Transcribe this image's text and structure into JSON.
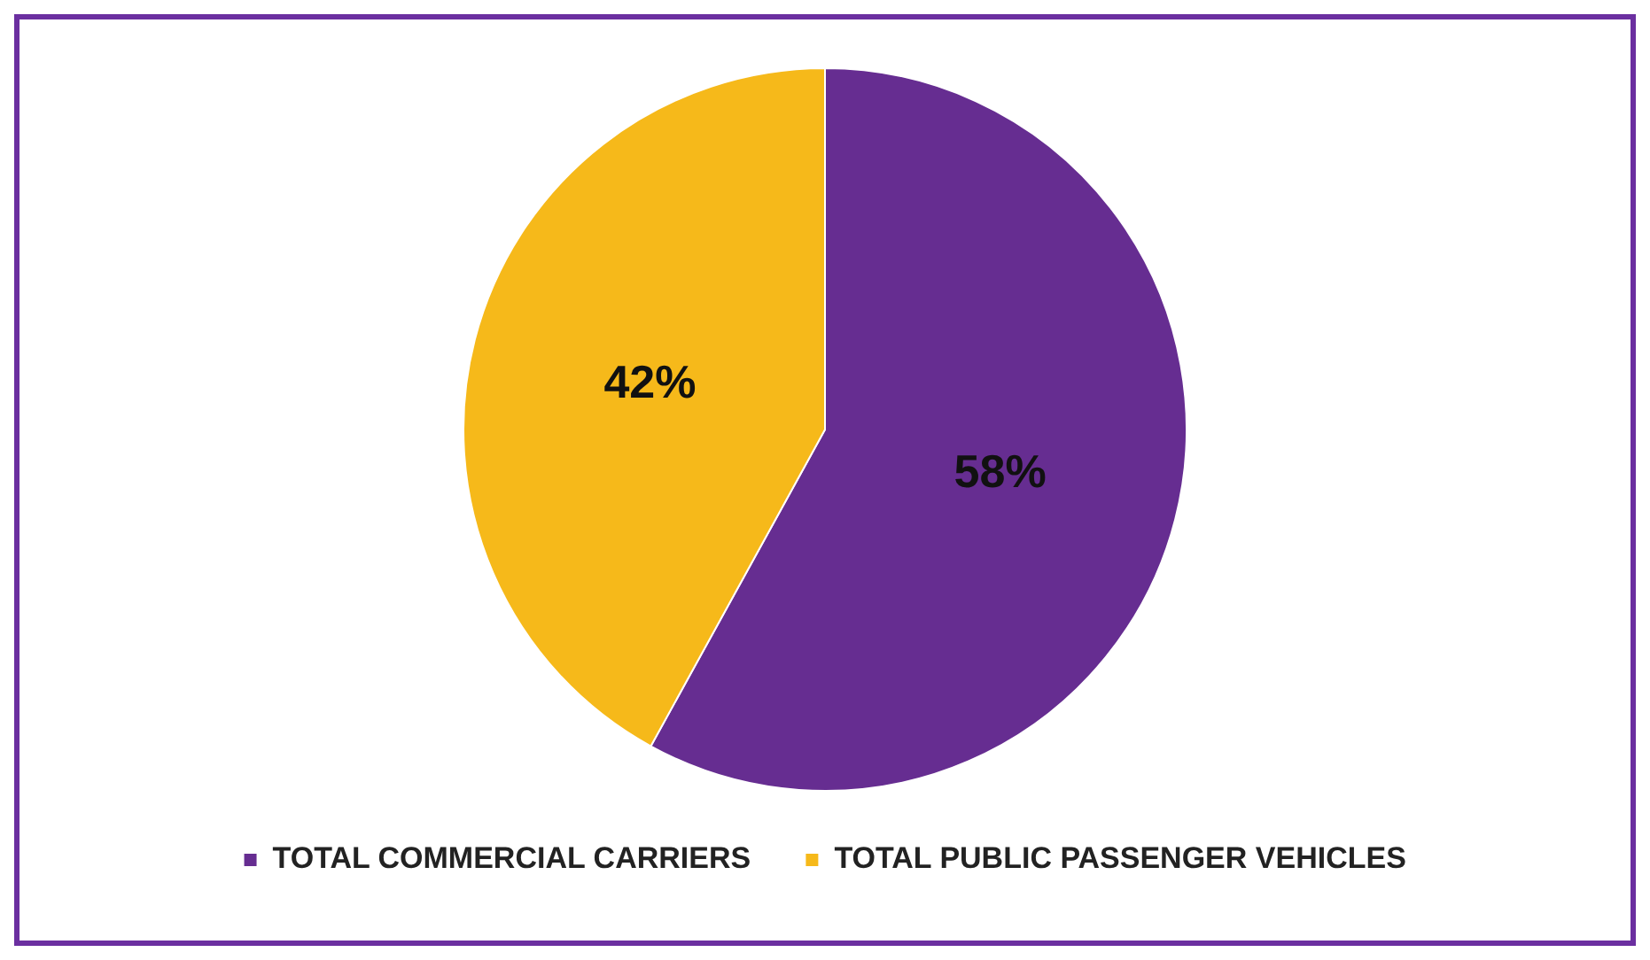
{
  "chart_data": {
    "type": "pie",
    "categories": [
      "TOTAL COMMERCIAL CARRIERS",
      "TOTAL PUBLIC PASSENGER VEHICLES"
    ],
    "values": [
      58,
      42
    ],
    "colors": [
      "#662d91",
      "#f6b91a"
    ],
    "value_labels": [
      "58%",
      "42%"
    ],
    "legend": "bottom"
  }
}
